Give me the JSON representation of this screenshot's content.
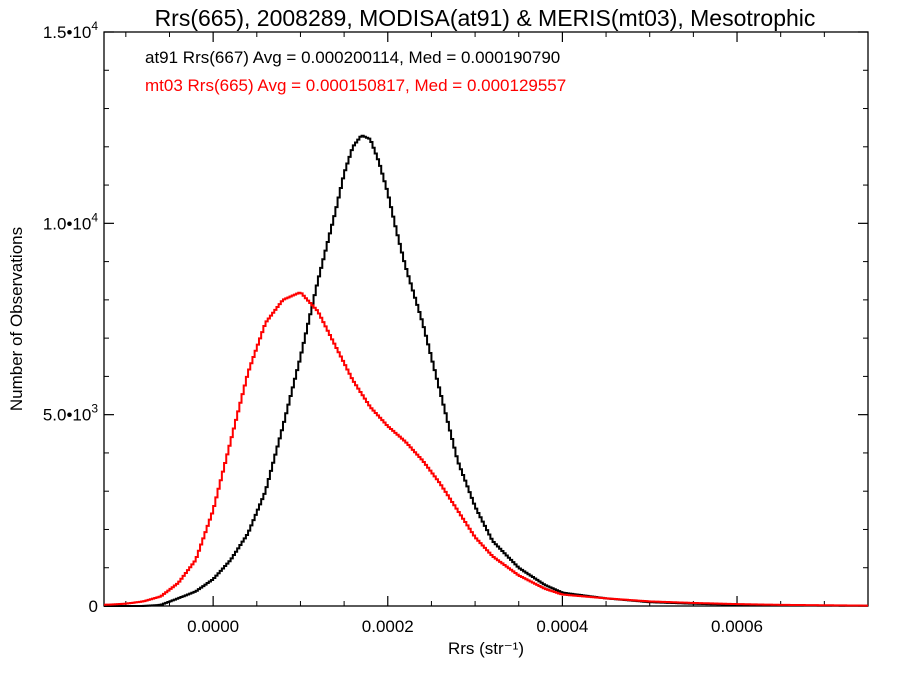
{
  "chart_data": {
    "type": "line",
    "title": "Rrs(665), 2008289, MODISA(at91) & MERIS(mt03), Mesotrophic",
    "xlabel": "Rrs (str⁻¹)",
    "ylabel": "Number of Observations",
    "xlim": [
      -0.000125,
      0.00075
    ],
    "ylim": [
      0,
      15000
    ],
    "x_ticks": [
      0.0,
      0.0002,
      0.0004,
      0.0006
    ],
    "x_tick_labels": [
      "0.0000",
      "0.0002",
      "0.0004",
      "0.0006"
    ],
    "y_ticks": [
      0,
      5000,
      10000,
      15000
    ],
    "y_tick_labels": [
      {
        "mantissa": "0",
        "exponent": ""
      },
      {
        "mantissa": "5.0•10",
        "exponent": "3"
      },
      {
        "mantissa": "1.0•10",
        "exponent": "4"
      },
      {
        "mantissa": "1.5•10",
        "exponent": "4"
      }
    ],
    "annotations": [
      {
        "text": "at91 Rrs(667) Avg = 0.000200114, Med = 0.000190790",
        "color": "#000000"
      },
      {
        "text": "mt03 Rrs(665) Avg = 0.000150817, Med = 0.000129557",
        "color": "#ff0000"
      }
    ],
    "style": "step",
    "series": [
      {
        "color": "#000000",
        "x": [
          -0.000125,
          -0.0001,
          -8e-05,
          -6e-05,
          -4e-05,
          -2e-05,
          0.0,
          2e-05,
          4e-05,
          6e-05,
          8e-05,
          0.0001,
          0.00012,
          0.00014,
          0.00015,
          0.00016,
          0.00017,
          0.00018,
          0.00019,
          0.0002,
          0.00021,
          0.00022,
          0.00024,
          0.00026,
          0.00028,
          0.0003,
          0.00032,
          0.00035,
          0.00038,
          0.0004,
          0.00045,
          0.0005,
          0.00055,
          0.0006,
          0.00065,
          0.0007,
          0.00075
        ],
        "values": [
          0,
          0,
          0,
          30,
          200,
          380,
          700,
          1200,
          1900,
          3000,
          4700,
          6500,
          8500,
          10300,
          11300,
          12000,
          12300,
          12200,
          11600,
          10800,
          9800,
          8900,
          7400,
          5600,
          3800,
          2600,
          1700,
          1000,
          550,
          350,
          200,
          100,
          60,
          30,
          20,
          10,
          5
        ]
      },
      {
        "color": "#ff0000",
        "x": [
          -0.000125,
          -0.0001,
          -8e-05,
          -6e-05,
          -4e-05,
          -2e-05,
          0.0,
          2e-05,
          4e-05,
          6e-05,
          8e-05,
          0.0001,
          0.00012,
          0.00014,
          0.00016,
          0.00018,
          0.0002,
          0.00022,
          0.00024,
          0.00026,
          0.00028,
          0.0003,
          0.00032,
          0.00035,
          0.00038,
          0.0004,
          0.00045,
          0.0005,
          0.00055,
          0.0006,
          0.00065,
          0.0007,
          0.00075
        ],
        "values": [
          30,
          60,
          120,
          250,
          600,
          1200,
          2500,
          4300,
          6100,
          7400,
          8000,
          8200,
          7700,
          6800,
          5900,
          5200,
          4700,
          4300,
          3800,
          3200,
          2500,
          1800,
          1300,
          800,
          450,
          300,
          200,
          120,
          80,
          50,
          30,
          20,
          10
        ]
      }
    ]
  }
}
